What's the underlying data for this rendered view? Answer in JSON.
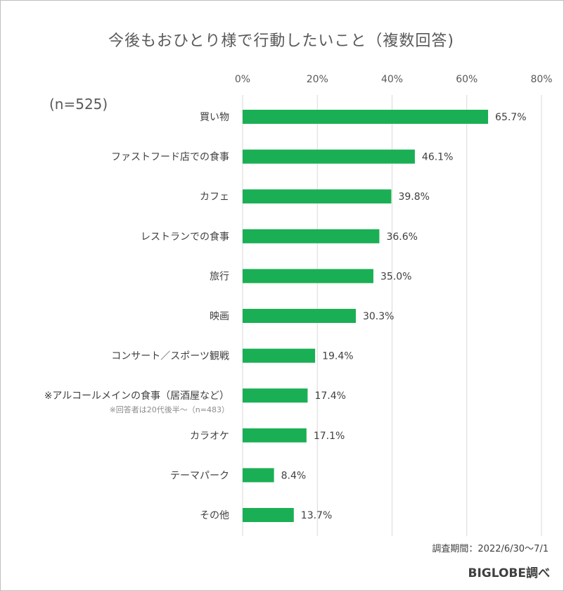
{
  "chart_data": {
    "type": "bar",
    "orientation": "horizontal",
    "title": "今後もおひとり様で行動したいこと（複数回答)",
    "sample_note": "(n=525)",
    "categories": [
      "買い物",
      "ファストフード店での食事",
      "カフェ",
      "レストランでの食事",
      "旅行",
      "映画",
      "コンサート／スポーツ観戦",
      "※アルコールメインの食事（居酒屋など）",
      "カラオケ",
      "テーマパーク",
      "その他"
    ],
    "category_notes": [
      "",
      "",
      "",
      "",
      "",
      "",
      "",
      "※回答者は20代後半～（n=483）",
      "",
      "",
      ""
    ],
    "values": [
      65.7,
      46.1,
      39.8,
      36.6,
      35.0,
      30.3,
      19.4,
      17.4,
      17.1,
      8.4,
      13.7
    ],
    "value_labels": [
      "65.7%",
      "46.1%",
      "39.8%",
      "36.6%",
      "35.0%",
      "30.3%",
      "19.4%",
      "17.4%",
      "17.1%",
      "8.4%",
      "13.7%"
    ],
    "xlim": [
      0,
      80
    ],
    "xticks": [
      0,
      20,
      40,
      60,
      80
    ],
    "xtick_labels": [
      "0%",
      "20%",
      "40%",
      "60%",
      "80%"
    ],
    "xaxis_position": "top",
    "grid": true,
    "legend": "none",
    "bar_color": "#1aaf54",
    "grid_color": "#d9d9d9"
  },
  "footer": {
    "period": "調査期間：2022/6/30～7/1",
    "source": "BIGLOBE調べ"
  }
}
